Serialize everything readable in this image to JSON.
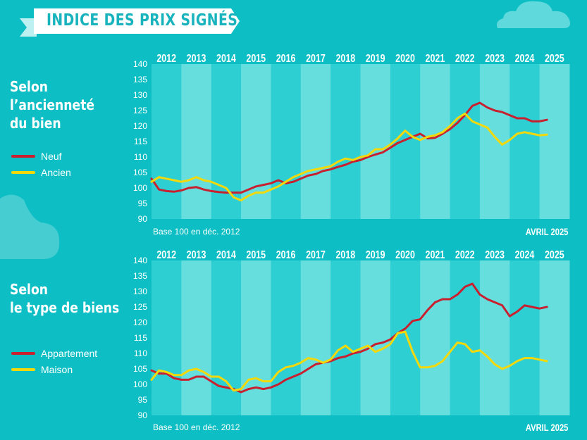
{
  "header": {
    "title": "INDICE DES PRIX SIGNÉS"
  },
  "colors": {
    "background": "#0dbfc4",
    "band_dark": "#2ecfd3",
    "band_light": "#67dede",
    "red": "#c8202f",
    "yellow": "#f4d90a"
  },
  "sections": [
    {
      "title": "Selon\nl’ancienneté\ndu bien",
      "legend": [
        "Neuf",
        "Ancien"
      ]
    },
    {
      "title": "Selon\nle type de biens",
      "legend": [
        "Appartement",
        "Maison"
      ]
    }
  ],
  "chart_data": [
    {
      "type": "line",
      "categories": [
        "2012",
        "2013",
        "2014",
        "2015",
        "2016",
        "2017",
        "2018",
        "2019",
        "2020",
        "2021",
        "2022",
        "2023",
        "2024",
        "2025"
      ],
      "ylim": [
        90,
        140
      ],
      "yticks": [
        140,
        135,
        130,
        125,
        120,
        115,
        110,
        105,
        100,
        95,
        90
      ],
      "note": "Base 100 en déc. 2012",
      "date_label": "AVRIL 2025",
      "series": [
        {
          "name": "Neuf",
          "color": "#c8202f",
          "x": [
            2012.0,
            2012.25,
            2012.5,
            2012.75,
            2013.0,
            2013.25,
            2013.5,
            2013.75,
            2014.0,
            2014.25,
            2014.5,
            2014.75,
            2015.0,
            2015.25,
            2015.5,
            2015.75,
            2016.0,
            2016.25,
            2016.5,
            2016.75,
            2017.0,
            2017.25,
            2017.5,
            2017.75,
            2018.0,
            2018.25,
            2018.5,
            2018.75,
            2019.0,
            2019.25,
            2019.5,
            2019.75,
            2020.0,
            2020.25,
            2020.5,
            2020.75,
            2021.0,
            2021.25,
            2021.5,
            2021.75,
            2022.0,
            2022.25,
            2022.5,
            2022.75,
            2023.0,
            2023.25,
            2023.5,
            2023.75,
            2024.0,
            2024.25,
            2024.5,
            2024.75,
            2025.0,
            2025.25
          ],
          "y": [
            103,
            99.5,
            99,
            98.8,
            99.2,
            100,
            100.3,
            99.5,
            99,
            98.7,
            98.5,
            98.5,
            98.5,
            99.5,
            100.5,
            101,
            101.5,
            102.5,
            101.5,
            102,
            103,
            104,
            104.5,
            105.5,
            106,
            106.8,
            107.5,
            108.5,
            109,
            110,
            110.8,
            111.5,
            113,
            114.5,
            115.5,
            116.5,
            117.5,
            116,
            116.2,
            117.5,
            119,
            121,
            123.5,
            126.5,
            127.5,
            126,
            125,
            124.5,
            123.5,
            122.5,
            122.5,
            121.5,
            121.5,
            122
          ]
        },
        {
          "name": "Ancien",
          "color": "#f4d90a",
          "x": [
            2012.0,
            2012.25,
            2012.5,
            2012.75,
            2013.0,
            2013.25,
            2013.5,
            2013.75,
            2014.0,
            2014.25,
            2014.5,
            2014.75,
            2015.0,
            2015.25,
            2015.5,
            2015.75,
            2016.0,
            2016.25,
            2016.5,
            2016.75,
            2017.0,
            2017.25,
            2017.5,
            2017.75,
            2018.0,
            2018.25,
            2018.5,
            2018.75,
            2019.0,
            2019.25,
            2019.5,
            2019.75,
            2020.0,
            2020.25,
            2020.5,
            2020.75,
            2021.0,
            2021.25,
            2021.5,
            2021.75,
            2022.0,
            2022.25,
            2022.5,
            2022.75,
            2023.0,
            2023.25,
            2023.5,
            2023.75,
            2024.0,
            2024.25,
            2024.5,
            2024.75,
            2025.0,
            2025.25
          ],
          "y": [
            102,
            103.5,
            103,
            102.5,
            102,
            102.5,
            103.5,
            102.5,
            102,
            101,
            100,
            97,
            96,
            97.5,
            98.5,
            98.5,
            99.5,
            100.5,
            102,
            103.5,
            104.5,
            105.5,
            106,
            106.5,
            107,
            108.5,
            109.5,
            109,
            110,
            110.5,
            112.5,
            112.5,
            114,
            116,
            118.5,
            116.5,
            115.5,
            116.5,
            117,
            118,
            120,
            122.5,
            124,
            121.5,
            120.5,
            119.5,
            116.5,
            114,
            115.5,
            117.5,
            118,
            117.5,
            117,
            117.2
          ]
        }
      ]
    },
    {
      "type": "line",
      "categories": [
        "2012",
        "2013",
        "2014",
        "2015",
        "2016",
        "2017",
        "2018",
        "2019",
        "2020",
        "2021",
        "2022",
        "2023",
        "2024",
        "2025"
      ],
      "ylim": [
        90,
        140
      ],
      "yticks": [
        140,
        135,
        130,
        125,
        120,
        115,
        110,
        105,
        100,
        95,
        90
      ],
      "note": "Base 100 en déc. 2012",
      "date_label": "AVRIL 2025",
      "series": [
        {
          "name": "Appartement",
          "color": "#c8202f",
          "x": [
            2012.0,
            2012.25,
            2012.5,
            2012.75,
            2013.0,
            2013.25,
            2013.5,
            2013.75,
            2014.0,
            2014.25,
            2014.5,
            2014.75,
            2015.0,
            2015.25,
            2015.5,
            2015.75,
            2016.0,
            2016.25,
            2016.5,
            2016.75,
            2017.0,
            2017.25,
            2017.5,
            2017.75,
            2018.0,
            2018.25,
            2018.5,
            2018.75,
            2019.0,
            2019.25,
            2019.5,
            2019.75,
            2020.0,
            2020.25,
            2020.5,
            2020.75,
            2021.0,
            2021.25,
            2021.5,
            2021.75,
            2022.0,
            2022.25,
            2022.5,
            2022.75,
            2023.0,
            2023.25,
            2023.5,
            2023.75,
            2024.0,
            2024.25,
            2024.5,
            2024.75,
            2025.0,
            2025.25
          ],
          "y": [
            104.5,
            103.5,
            103.5,
            102,
            101.5,
            101.5,
            102.5,
            102.5,
            101,
            99.5,
            99,
            98.5,
            97.5,
            98.5,
            99,
            98.5,
            99,
            100,
            101.5,
            102.5,
            103.5,
            105,
            106.5,
            107,
            107.5,
            108.5,
            109,
            110,
            110.5,
            111.5,
            113,
            113.5,
            114.5,
            116.5,
            118,
            120.5,
            121,
            124,
            126.5,
            127.5,
            127.5,
            129,
            131.5,
            132.5,
            129,
            127.5,
            126.5,
            125.5,
            122,
            123.5,
            125.5,
            125,
            124.5,
            125
          ]
        },
        {
          "name": "Maison",
          "color": "#f4d90a",
          "x": [
            2012.0,
            2012.25,
            2012.5,
            2012.75,
            2013.0,
            2013.25,
            2013.5,
            2013.75,
            2014.0,
            2014.25,
            2014.5,
            2014.75,
            2015.0,
            2015.25,
            2015.5,
            2015.75,
            2016.0,
            2016.25,
            2016.5,
            2016.75,
            2017.0,
            2017.25,
            2017.5,
            2017.75,
            2018.0,
            2018.25,
            2018.5,
            2018.75,
            2019.0,
            2019.25,
            2019.5,
            2019.75,
            2020.0,
            2020.25,
            2020.5,
            2020.75,
            2021.0,
            2021.25,
            2021.5,
            2021.75,
            2022.0,
            2022.25,
            2022.5,
            2022.75,
            2023.0,
            2023.25,
            2023.5,
            2023.75,
            2024.0,
            2024.25,
            2024.5,
            2024.75,
            2025.0,
            2025.25
          ],
          "y": [
            101.5,
            104.5,
            104,
            103,
            103,
            104.5,
            105,
            104,
            102.5,
            102.5,
            101,
            98,
            98.5,
            101.5,
            102,
            101,
            101,
            104,
            105.5,
            106,
            107,
            108.5,
            108,
            107,
            108,
            111,
            112.5,
            110.5,
            111.5,
            112.5,
            110.5,
            111.5,
            113,
            116.5,
            117,
            110.5,
            105.5,
            105.5,
            106,
            107.5,
            110.5,
            113.5,
            113,
            110.5,
            111,
            109,
            106.5,
            105,
            106,
            107.5,
            108.5,
            108.5,
            108,
            107.5
          ]
        }
      ]
    }
  ]
}
